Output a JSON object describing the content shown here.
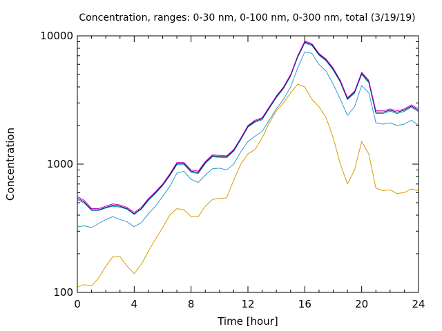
{
  "chart_data": {
    "type": "line",
    "title": "Concentration, ranges: 0-30 nm, 0-100 nm, 0-300 nm, total (3/19/19)",
    "xlabel": "Time [hour]",
    "ylabel": "Concentration",
    "xlim": [
      0,
      24
    ],
    "ylim": [
      100,
      10000
    ],
    "yscale": "log",
    "grid": false,
    "legend": "none",
    "xticks": [
      0,
      4,
      8,
      12,
      16,
      20,
      24
    ],
    "xtick_labels": [
      "0",
      "4",
      "8",
      "12",
      "16",
      "20",
      "24"
    ],
    "yticks": [
      100,
      1000,
      10000
    ],
    "ytick_labels": [
      "100",
      "1000",
      "10000"
    ],
    "x": [
      0,
      0.5,
      1,
      1.5,
      2,
      2.5,
      3,
      3.5,
      4,
      4.5,
      5,
      5.5,
      6,
      6.5,
      7,
      7.5,
      8,
      8.5,
      9,
      9.5,
      10,
      10.5,
      11,
      11.5,
      12,
      12.5,
      13,
      13.5,
      14,
      14.5,
      15,
      15.5,
      16,
      16.5,
      17,
      17.5,
      18,
      18.5,
      19,
      19.5,
      20,
      20.5,
      21,
      21.5,
      22,
      22.5,
      23,
      23.5,
      24
    ],
    "series": [
      {
        "color": "#cc00cc",
        "values": [
          560,
          520,
          450,
          450,
          470,
          490,
          480,
          460,
          420,
          460,
          540,
          610,
          700,
          840,
          1030,
          1030,
          900,
          880,
          1050,
          1180,
          1170,
          1160,
          1300,
          1600,
          2000,
          2200,
          2300,
          2800,
          3400,
          4000,
          5000,
          7000,
          9100,
          8700,
          7300,
          6600,
          5600,
          4500,
          3300,
          3700,
          5200,
          4500,
          2600,
          2600,
          2700,
          2600,
          2700,
          2900,
          2700
        ]
      },
      {
        "color": "#000066",
        "values": [
          545,
          505,
          440,
          440,
          460,
          478,
          470,
          450,
          410,
          450,
          530,
          600,
          690,
          820,
          1010,
          1010,
          880,
          860,
          1030,
          1160,
          1150,
          1140,
          1280,
          1580,
          1970,
          2160,
          2260,
          2760,
          3350,
          3940,
          4920,
          6900,
          8950,
          8550,
          7180,
          6480,
          5500,
          4420,
          3240,
          3640,
          5100,
          4400,
          2540,
          2540,
          2640,
          2540,
          2640,
          2840,
          2620
        ]
      },
      {
        "color": "#009999",
        "values": [
          530,
          495,
          435,
          435,
          455,
          470,
          462,
          445,
          405,
          445,
          520,
          590,
          680,
          810,
          990,
          990,
          865,
          845,
          1010,
          1140,
          1130,
          1120,
          1260,
          1550,
          1940,
          2120,
          2220,
          2720,
          3300,
          3880,
          4850,
          6800,
          8800,
          8400,
          7050,
          6380,
          5400,
          4350,
          3180,
          3580,
          5000,
          4300,
          2480,
          2480,
          2590,
          2480,
          2580,
          2780,
          2560
        ]
      },
      {
        "color": "#3399cc",
        "values": [
          325,
          330,
          320,
          345,
          370,
          390,
          370,
          355,
          325,
          350,
          410,
          470,
          560,
          670,
          850,
          880,
          760,
          720,
          820,
          920,
          930,
          900,
          1000,
          1250,
          1500,
          1650,
          1800,
          2200,
          2700,
          3200,
          4000,
          5600,
          7500,
          7300,
          6000,
          5300,
          4200,
          3200,
          2400,
          2800,
          4100,
          3600,
          2100,
          2050,
          2100,
          2000,
          2050,
          2200,
          2000
        ]
      },
      {
        "color": "#dd9900",
        "values": [
          110,
          115,
          112,
          130,
          160,
          190,
          190,
          160,
          140,
          165,
          210,
          260,
          320,
          400,
          450,
          440,
          390,
          390,
          470,
          530,
          540,
          545,
          750,
          1000,
          1200,
          1300,
          1600,
          2100,
          2600,
          3000,
          3600,
          4200,
          4000,
          3200,
          2800,
          2300,
          1600,
          1000,
          700,
          900,
          1500,
          1200,
          650,
          620,
          630,
          590,
          600,
          640,
          620
        ]
      }
    ]
  }
}
